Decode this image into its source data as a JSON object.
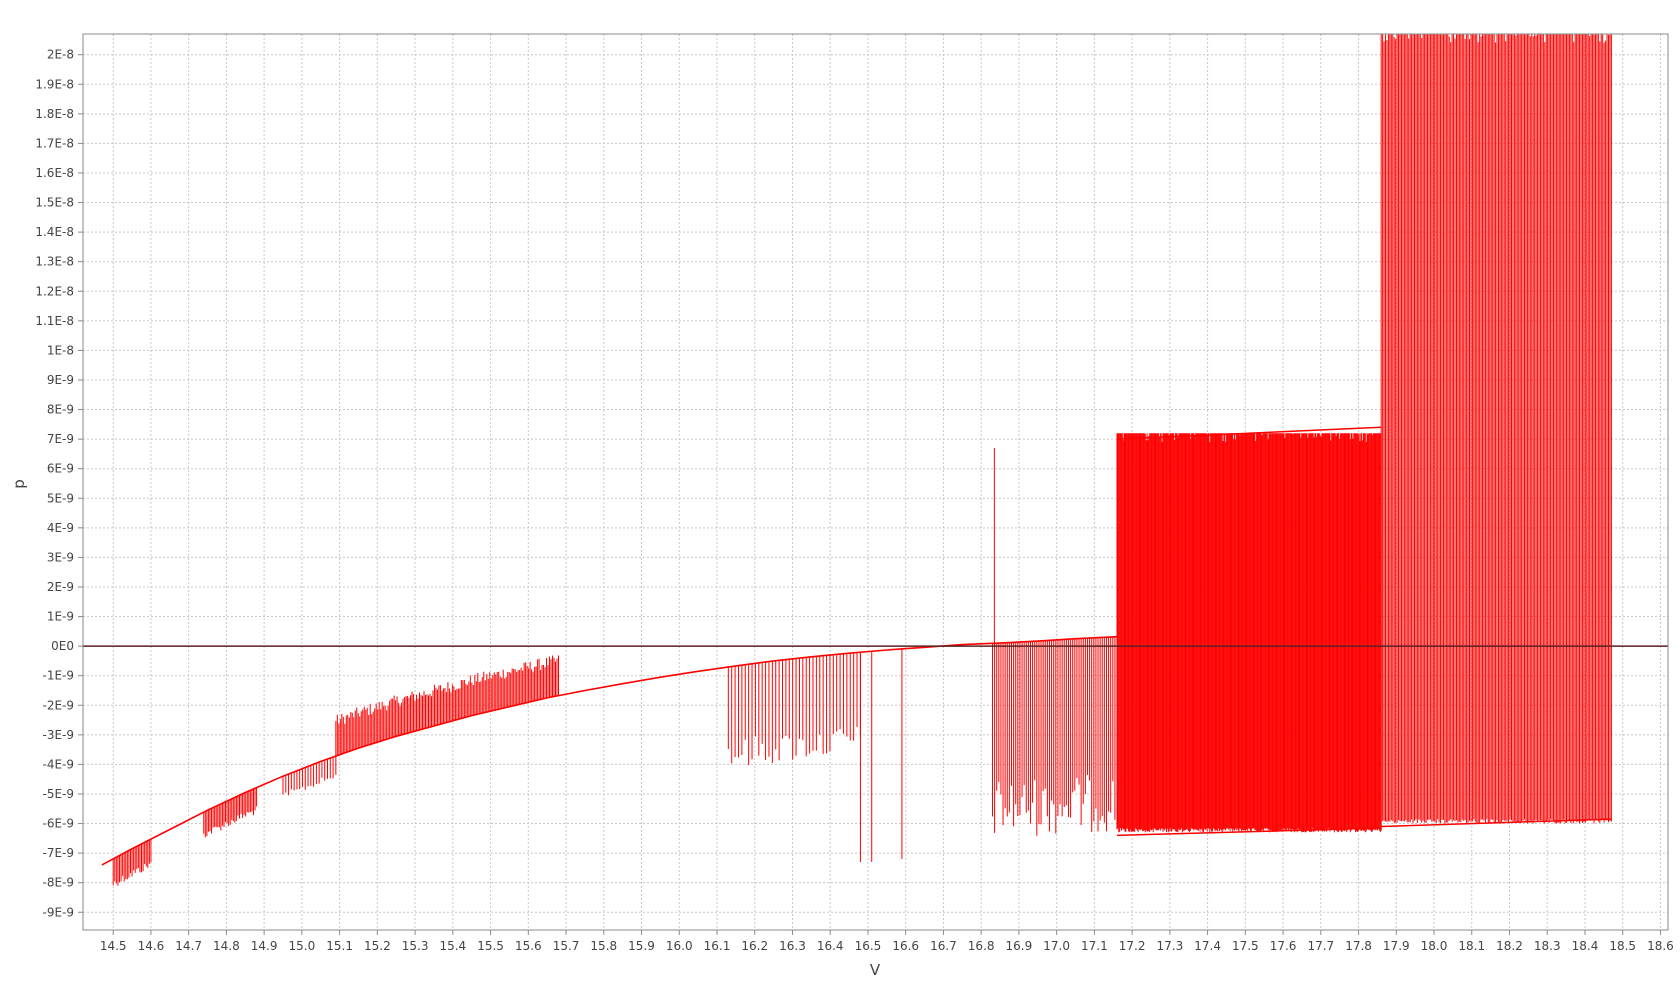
{
  "chart_data": {
    "type": "line",
    "title": "",
    "xlabel": "V",
    "ylabel": "p",
    "xlim": [
      14.42,
      18.62
    ],
    "ylim": [
      -9.6e-09,
      2.07e-08
    ],
    "grid": true,
    "x_ticks": [
      14.5,
      14.6,
      14.7,
      14.8,
      14.9,
      15.0,
      15.1,
      15.2,
      15.3,
      15.4,
      15.5,
      15.6,
      15.7,
      15.8,
      15.9,
      16.0,
      16.1,
      16.2,
      16.3,
      16.4,
      16.5,
      16.6,
      16.7,
      16.8,
      16.9,
      17.0,
      17.1,
      17.2,
      17.3,
      17.4,
      17.5,
      17.6,
      17.7,
      17.8,
      17.9,
      18.0,
      18.1,
      18.2,
      18.3,
      18.4,
      18.5,
      18.6
    ],
    "x_tick_labels": [
      "14.5",
      "14.6",
      "14.7",
      "14.8",
      "14.9",
      "15.0",
      "15.1",
      "15.2",
      "15.3",
      "15.4",
      "15.5",
      "15.6",
      "15.7",
      "15.8",
      "15.9",
      "16.0",
      "16.1",
      "16.2",
      "16.3",
      "16.4",
      "16.5",
      "16.6",
      "16.7",
      "16.8",
      "16.9",
      "17.0",
      "17.1",
      "17.2",
      "17.3",
      "17.4",
      "17.5",
      "17.6",
      "17.7",
      "17.8",
      "17.9",
      "18.0",
      "18.1",
      "18.2",
      "18.3",
      "18.4",
      "18.5",
      "18.6"
    ],
    "y_ticks": [
      2e-08,
      1.9e-08,
      1.8e-08,
      1.7e-08,
      1.6e-08,
      1.5e-08,
      1.4e-08,
      1.3e-08,
      1.2e-08,
      1.1e-08,
      1e-08,
      9e-09,
      8e-09,
      7e-09,
      6e-09,
      5e-09,
      4e-09,
      3e-09,
      2e-09,
      1e-09,
      0,
      -1e-09,
      -2e-09,
      -3e-09,
      -4e-09,
      -5e-09,
      -6e-09,
      -7e-09,
      -8e-09,
      -9e-09
    ],
    "y_tick_labels": [
      "2E-8",
      "1.9E-8",
      "1.8E-8",
      "1.7E-8",
      "1.6E-8",
      "1.5E-8",
      "1.4E-8",
      "1.3E-8",
      "1.2E-8",
      "1.1E-8",
      "1E-8",
      "9E-9",
      "8E-9",
      "7E-9",
      "6E-9",
      "5E-9",
      "4E-9",
      "3E-9",
      "2E-9",
      "1E-9",
      "0E0",
      "-1E-9",
      "-2E-9",
      "-3E-9",
      "-4E-9",
      "-5E-9",
      "-6E-9",
      "-7E-9",
      "-8E-9",
      "-9E-9"
    ],
    "reference_line": {
      "y": 0,
      "color": "#5a2020"
    },
    "series": [
      {
        "name": "p",
        "color": "#ff0000",
        "x": [
          14.47,
          14.55,
          14.65,
          14.75,
          14.85,
          14.95,
          15.05,
          15.15,
          15.25,
          15.35,
          15.45,
          15.55,
          15.65,
          15.75,
          15.85,
          15.95,
          16.05,
          16.15,
          16.25,
          16.35,
          16.45,
          16.55,
          16.65,
          16.75,
          16.84,
          16.95,
          17.05,
          17.16
        ],
        "y": [
          -7.4e-09,
          -6.85e-09,
          -6.2e-09,
          -5.55e-09,
          -4.95e-09,
          -4.4e-09,
          -3.9e-09,
          -3.45e-09,
          -3.05e-09,
          -2.7e-09,
          -2.35e-09,
          -2.05e-09,
          -1.75e-09,
          -1.5e-09,
          -1.27e-09,
          -1.05e-09,
          -8.5e-10,
          -6.7e-10,
          -5e-10,
          -3.6e-10,
          -2.4e-10,
          -1.3e-10,
          -4e-11,
          5e-11,
          1e-10,
          1.7e-10,
          2.5e-10,
          3.2e-10
        ]
      }
    ],
    "spike_bands": [
      {
        "x_start": 14.5,
        "x_end": 14.6,
        "count": 25,
        "spike_to_offset": -1e-09
      },
      {
        "x_start": 14.74,
        "x_end": 14.88,
        "count": 35,
        "spike_to_offset": -9e-10
      },
      {
        "x_start": 14.95,
        "x_end": 15.09,
        "count": 20,
        "spike_to_offset": -8e-10
      },
      {
        "x_start": 15.09,
        "x_end": 15.68,
        "count": 150,
        "spike_to_offset": 1.4e-09
      },
      {
        "x_start": 16.13,
        "x_end": 16.48,
        "count": 40,
        "spike_to_offset": -3.5e-09
      },
      {
        "x_start": 16.83,
        "x_end": 17.16,
        "count": 60,
        "spike_to_offset": -6.6e-09
      },
      {
        "x_start": 17.16,
        "x_end": 17.86,
        "count": 300,
        "band_low": -6.3e-09,
        "band_high": 7.2e-09
      },
      {
        "x_start": 17.86,
        "x_end": 18.47,
        "count": 160,
        "band_low": -6e-09,
        "band_high": 2.07e-08
      }
    ],
    "isolated_spikes": [
      {
        "x": 16.835,
        "y_from": 0.0,
        "y_to": 6.7e-09
      },
      {
        "x": 16.48,
        "y_from": -2.5e-10,
        "y_to": -7.3e-09
      },
      {
        "x": 16.51,
        "y_from": -2e-10,
        "y_to": -7.3e-09
      },
      {
        "x": 16.59,
        "y_from": -1e-10,
        "y_to": -7.2e-09
      }
    ]
  }
}
